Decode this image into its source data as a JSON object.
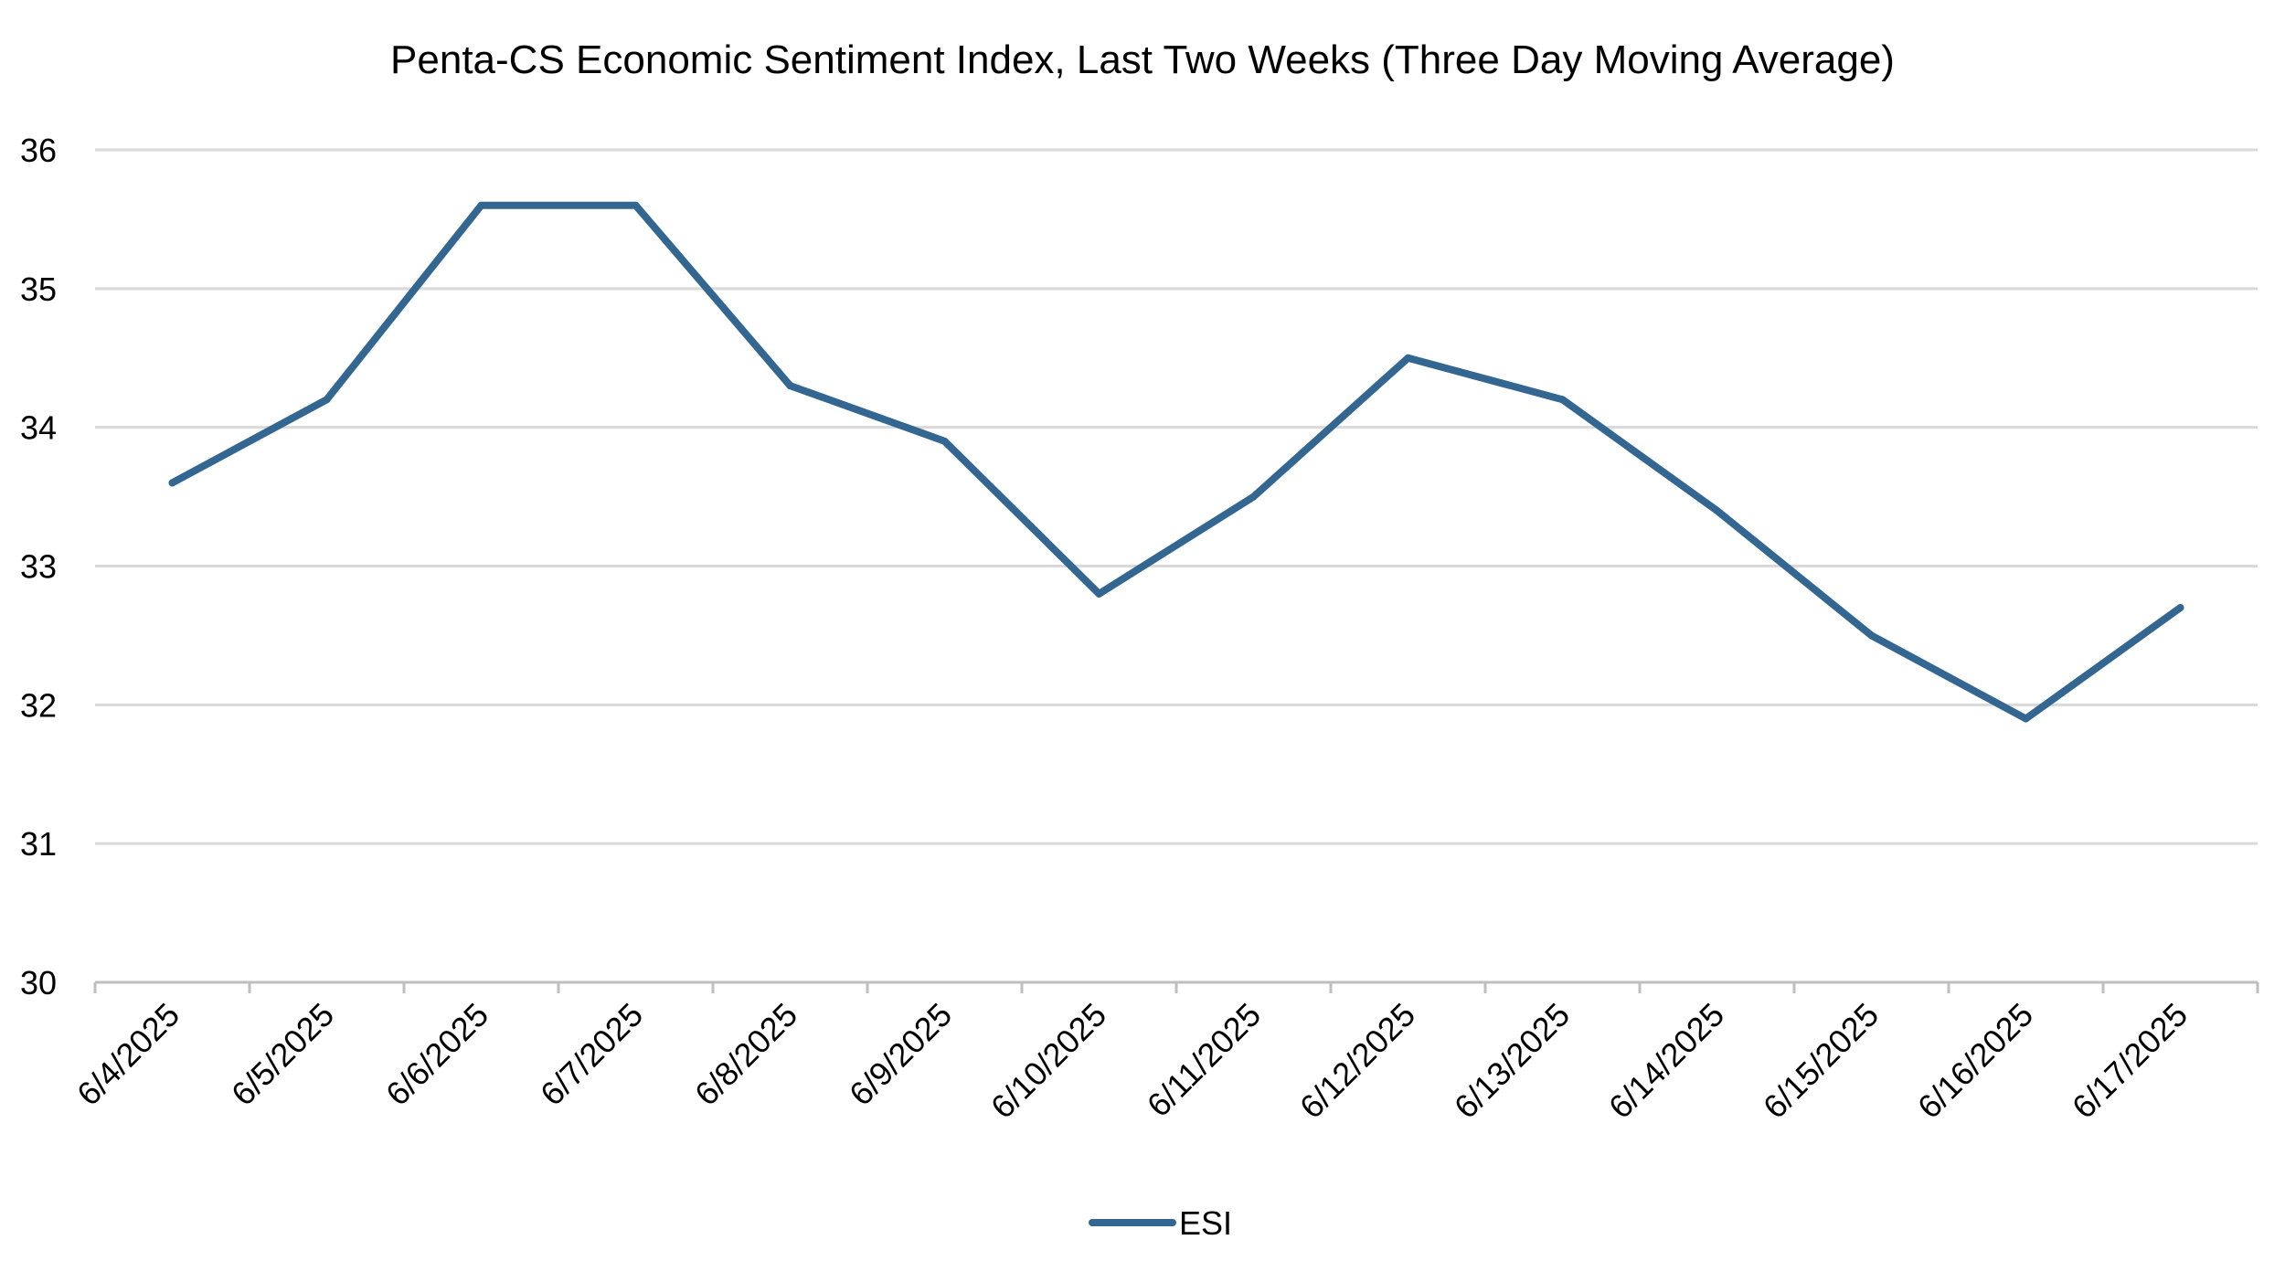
{
  "chart_data": {
    "type": "line",
    "title": "Penta-CS Economic Sentiment Index, Last Two Weeks (Three Day Moving Average)",
    "categories": [
      "6/4/2025",
      "6/5/2025",
      "6/6/2025",
      "6/7/2025",
      "6/8/2025",
      "6/9/2025",
      "6/10/2025",
      "6/11/2025",
      "6/12/2025",
      "6/13/2025",
      "6/14/2025",
      "6/15/2025",
      "6/16/2025",
      "6/17/2025"
    ],
    "series": [
      {
        "name": "ESI",
        "color": "#336791",
        "values": [
          33.6,
          34.2,
          35.6,
          35.6,
          34.3,
          33.9,
          32.8,
          33.5,
          34.5,
          34.2,
          33.4,
          32.5,
          31.9,
          32.7
        ]
      }
    ],
    "ylim": [
      30,
      36
    ],
    "yticks": [
      "30",
      "31",
      "32",
      "33",
      "34",
      "35",
      "36"
    ],
    "grid": true,
    "gridline_color": "#d9d9d9",
    "axis_color": "#bfbfbf",
    "legend_position": "bottom-center"
  }
}
